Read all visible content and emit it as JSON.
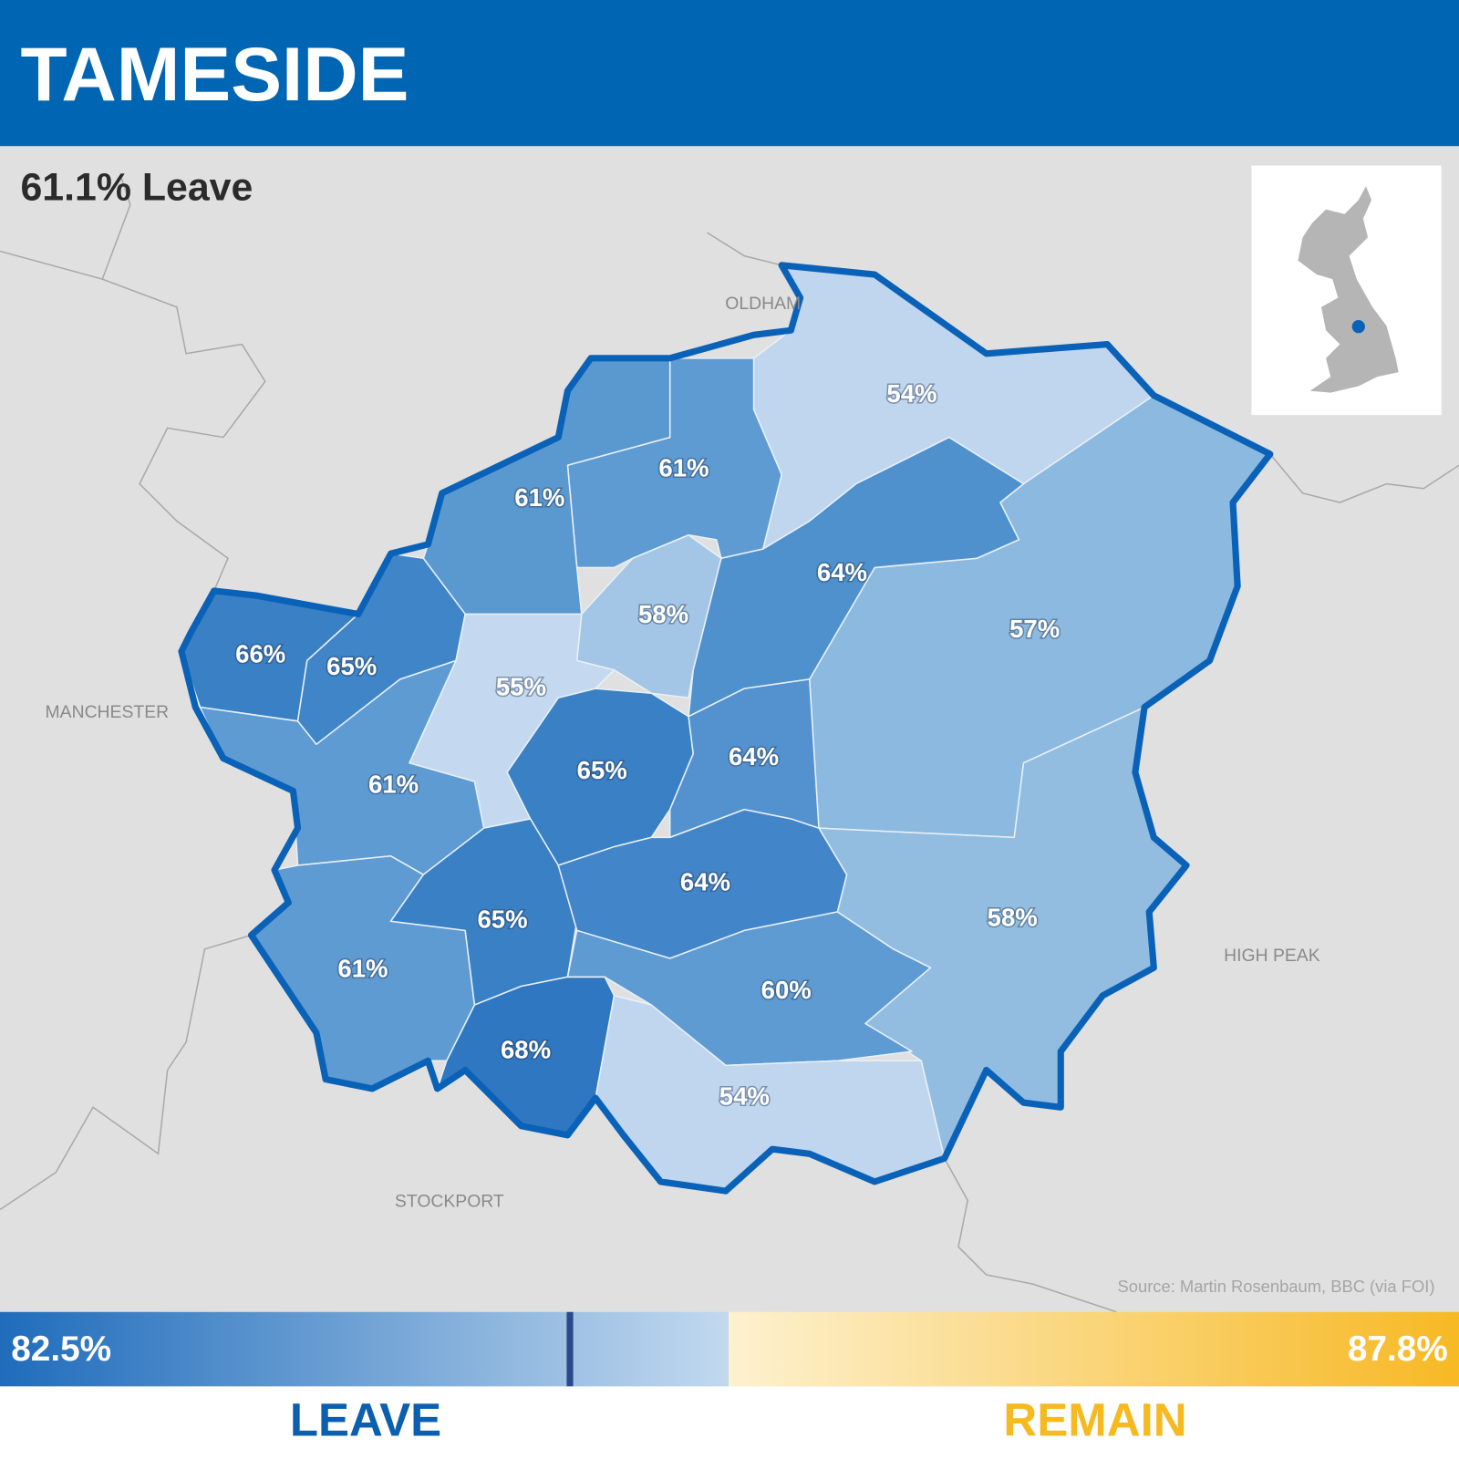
{
  "header": {
    "title": "TAMESIDE"
  },
  "subtitle": "61.1% Leave",
  "places": [
    "OLDHAM",
    "MANCHESTER",
    "HIGH PEAK",
    "STOCKPORT"
  ],
  "wards": [
    "54%",
    "57%",
    "58%",
    "64%",
    "61%",
    "61%",
    "58%",
    "66%",
    "65%",
    "55%",
    "65%",
    "64%",
    "61%",
    "61%",
    "65%",
    "64%",
    "60%",
    "68%",
    "54%"
  ],
  "source": "Source: Martin Rosenbaum, BBC (via FOI)",
  "legend": {
    "leave_max": "82.5%",
    "remain_max": "87.8%",
    "leave": "LEAVE",
    "remain": "REMAIN"
  }
}
